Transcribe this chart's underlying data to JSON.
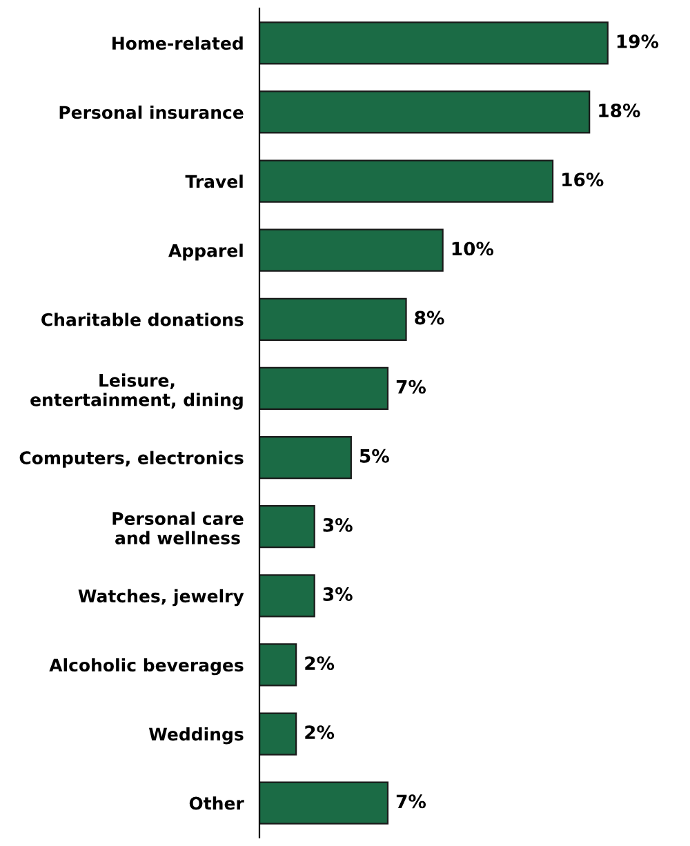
{
  "chart_data": {
    "type": "bar",
    "orientation": "horizontal",
    "categories": [
      "Home-related",
      "Personal insurance",
      "Travel",
      "Apparel",
      "Charitable donations",
      "Leisure,\nentertainment, dining",
      "Computers, electronics",
      "Personal care\nand wellness",
      "Watches, jewelry",
      "Alcoholic beverages",
      "Weddings",
      "Other"
    ],
    "values": [
      19,
      18,
      16,
      10,
      8,
      7,
      5,
      3,
      3,
      2,
      2,
      7
    ],
    "value_labels": [
      "19%",
      "18%",
      "16%",
      "10%",
      "8%",
      "7%",
      "5%",
      "3%",
      "3%",
      "2%",
      "2%",
      "7%"
    ],
    "color": "#1b6b45"
  }
}
